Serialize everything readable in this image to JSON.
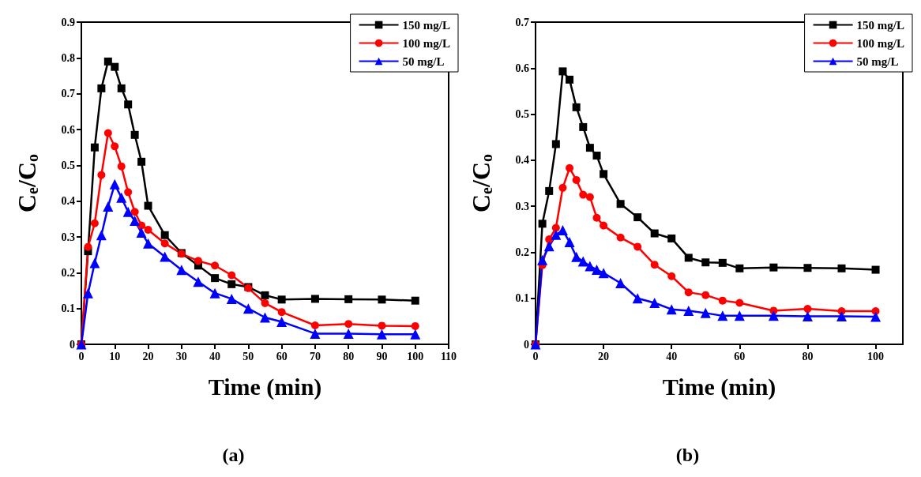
{
  "chart_data": [
    {
      "type": "line",
      "xlabel": "Time (min)",
      "ylabel": "C$_{e}$/C$_{o}$",
      "x": [
        0,
        2,
        4,
        6,
        8,
        10,
        12,
        14,
        16,
        18,
        20,
        25,
        30,
        35,
        40,
        45,
        50,
        55,
        60,
        70,
        80,
        90,
        100
      ],
      "xlim": [
        0,
        110
      ],
      "xticks": [
        0,
        10,
        20,
        30,
        40,
        50,
        60,
        70,
        80,
        90,
        100,
        110
      ],
      "ylim": [
        0,
        0.9
      ],
      "yticks": [
        0,
        0.1,
        0.2,
        0.3,
        0.4,
        0.5,
        0.6,
        0.7,
        0.8,
        0.9
      ],
      "grid": false,
      "legend": "top right",
      "line_style": "solid",
      "annotations": [
        "(a)"
      ],
      "series": [
        {
          "name": "150 mg/L",
          "color": "#000000",
          "marker": "square",
          "values": [
            0,
            0.26,
            0.55,
            0.715,
            0.79,
            0.775,
            0.715,
            0.67,
            0.585,
            0.51,
            0.387,
            0.305,
            0.255,
            0.22,
            0.185,
            0.168,
            0.16,
            0.137,
            0.125,
            0.127,
            0.126,
            0.125,
            0.122
          ]
        },
        {
          "name": "100 mg/L",
          "color": "#ff0000",
          "marker": "circle",
          "values": [
            0,
            0.272,
            0.338,
            0.473,
            0.59,
            0.553,
            0.497,
            0.425,
            0.37,
            0.332,
            0.32,
            0.282,
            0.253,
            0.233,
            0.22,
            0.193,
            0.157,
            0.115,
            0.09,
            0.053,
            0.057,
            0.052,
            0.051
          ]
        },
        {
          "name": "50 mg/L",
          "color": "#0000ff",
          "marker": "triangle",
          "values": [
            0,
            0.143,
            0.227,
            0.305,
            0.385,
            0.447,
            0.41,
            0.37,
            0.345,
            0.312,
            0.282,
            0.245,
            0.208,
            0.175,
            0.143,
            0.127,
            0.1,
            0.075,
            0.063,
            0.03,
            0.03,
            0.028,
            0.028
          ]
        }
      ]
    },
    {
      "type": "line",
      "xlabel": "Time (min)",
      "ylabel": "C$_{e}$/C$_{o}$",
      "x": [
        0,
        2,
        4,
        6,
        8,
        10,
        12,
        14,
        16,
        18,
        20,
        25,
        30,
        35,
        40,
        45,
        50,
        55,
        60,
        70,
        80,
        90,
        100
      ],
      "xlim": [
        0,
        108
      ],
      "xticks": [
        0,
        20,
        40,
        60,
        80,
        100
      ],
      "ylim": [
        0,
        0.7
      ],
      "yticks": [
        0,
        0.1,
        0.2,
        0.3,
        0.4,
        0.5,
        0.6,
        0.7
      ],
      "grid": false,
      "legend": "top right",
      "line_style": "solid",
      "annotations": [
        "(b)"
      ],
      "series": [
        {
          "name": "150 mg/L",
          "color": "#000000",
          "marker": "square",
          "values": [
            0,
            0.262,
            0.333,
            0.435,
            0.593,
            0.575,
            0.515,
            0.472,
            0.427,
            0.41,
            0.37,
            0.305,
            0.276,
            0.241,
            0.23,
            0.188,
            0.178,
            0.177,
            0.165,
            0.167,
            0.166,
            0.165,
            0.162
          ]
        },
        {
          "name": "100 mg/L",
          "color": "#ff0000",
          "marker": "circle",
          "values": [
            0,
            0.172,
            0.228,
            0.253,
            0.34,
            0.383,
            0.357,
            0.325,
            0.32,
            0.275,
            0.258,
            0.232,
            0.212,
            0.173,
            0.148,
            0.113,
            0.107,
            0.095,
            0.09,
            0.073,
            0.077,
            0.072,
            0.072
          ]
        },
        {
          "name": "50 mg/L",
          "color": "#0000ff",
          "marker": "triangle",
          "values": [
            0,
            0.183,
            0.213,
            0.238,
            0.248,
            0.222,
            0.19,
            0.18,
            0.17,
            0.162,
            0.155,
            0.133,
            0.1,
            0.09,
            0.076,
            0.073,
            0.068,
            0.062,
            0.062,
            0.062,
            0.061,
            0.061,
            0.06
          ]
        }
      ]
    }
  ]
}
